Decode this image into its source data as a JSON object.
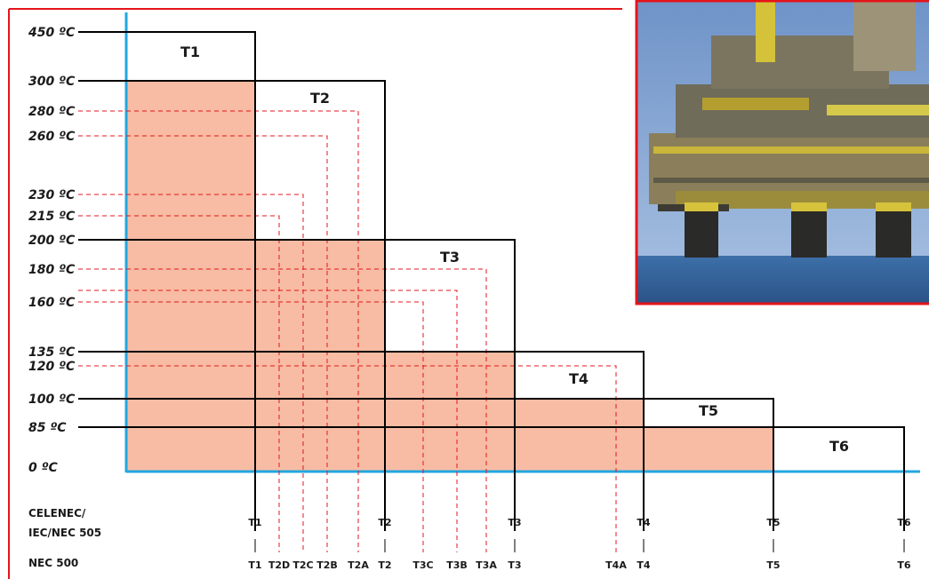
{
  "colors": {
    "frame": "#e5141b",
    "axis": "#22a7e0",
    "fill": "#f7bca3",
    "line": "#000000",
    "dashed": "#e5141b"
  },
  "temperatures": [
    "450 ºC",
    "300 ºC",
    "280 ºC",
    "260 ºC",
    "230 ºC",
    "215 ºC",
    "200 ºC",
    "180 ºC",
    "160 ºC",
    "135 ºC",
    "120 ºC",
    "100 ºC",
    "85 ºC",
    "0 ºC"
  ],
  "classes": [
    {
      "label": "T1",
      "max_temp_c": 450
    },
    {
      "label": "T2",
      "max_temp_c": 300
    },
    {
      "label": "T3",
      "max_temp_c": 200
    },
    {
      "label": "T4",
      "max_temp_c": 135
    },
    {
      "label": "T5",
      "max_temp_c": 100
    },
    {
      "label": "T6",
      "max_temp_c": 85
    }
  ],
  "subclasses": [
    {
      "label": "T2D",
      "max_temp_c": 215
    },
    {
      "label": "T2C",
      "max_temp_c": 230
    },
    {
      "label": "T2B",
      "max_temp_c": 260
    },
    {
      "label": "T2A",
      "max_temp_c": 280
    },
    {
      "label": "T3C",
      "max_temp_c": 160
    },
    {
      "label": "T3B",
      "max_temp_c": 165
    },
    {
      "label": "T3A",
      "max_temp_c": 180
    },
    {
      "label": "T4A",
      "max_temp_c": 120
    }
  ],
  "standards": {
    "iec": {
      "label_line1": "CELENEC/",
      "label_line2": "IEC/NEC 505",
      "codes": [
        "T1",
        "T2",
        "T3",
        "T4",
        "T5",
        "T6"
      ]
    },
    "nec": {
      "label": "NEC 500",
      "codes": [
        "T1",
        "T2D",
        "T2C",
        "T2B",
        "T2A",
        "T2",
        "T3C",
        "T3B",
        "T3A",
        "T3",
        "T4A",
        "T4",
        "T5",
        "T6"
      ]
    }
  },
  "photo": {
    "icon": "offshore-oil-platform-photo"
  }
}
